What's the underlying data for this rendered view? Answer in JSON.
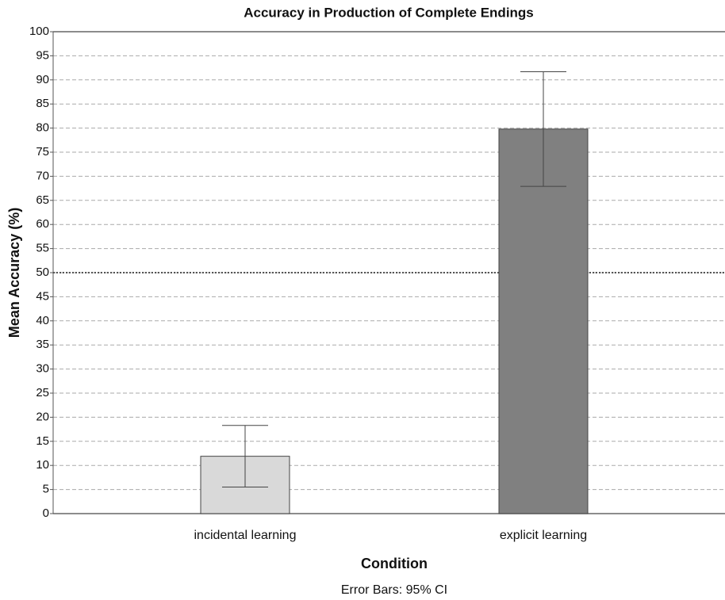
{
  "chart_data": {
    "type": "bar",
    "title": "Accuracy in Production of Complete Endings",
    "x_label": "Condition",
    "y_label": "Mean Accuracy (%)",
    "note": "Error Bars: 95% CI",
    "categories": [
      "incidental learning",
      "explicit learning"
    ],
    "values": [
      11.9,
      79.8
    ],
    "errors": [
      6.4,
      11.9
    ],
    "colors": [
      "#d9d9d9",
      "#808080"
    ],
    "ylim": [
      0,
      100
    ],
    "yticks": [
      0,
      5,
      10,
      15,
      20,
      25,
      30,
      35,
      40,
      45,
      50,
      55,
      60,
      65,
      70,
      75,
      80,
      85,
      90,
      95,
      100
    ],
    "grid": true,
    "reference_line": 50
  }
}
